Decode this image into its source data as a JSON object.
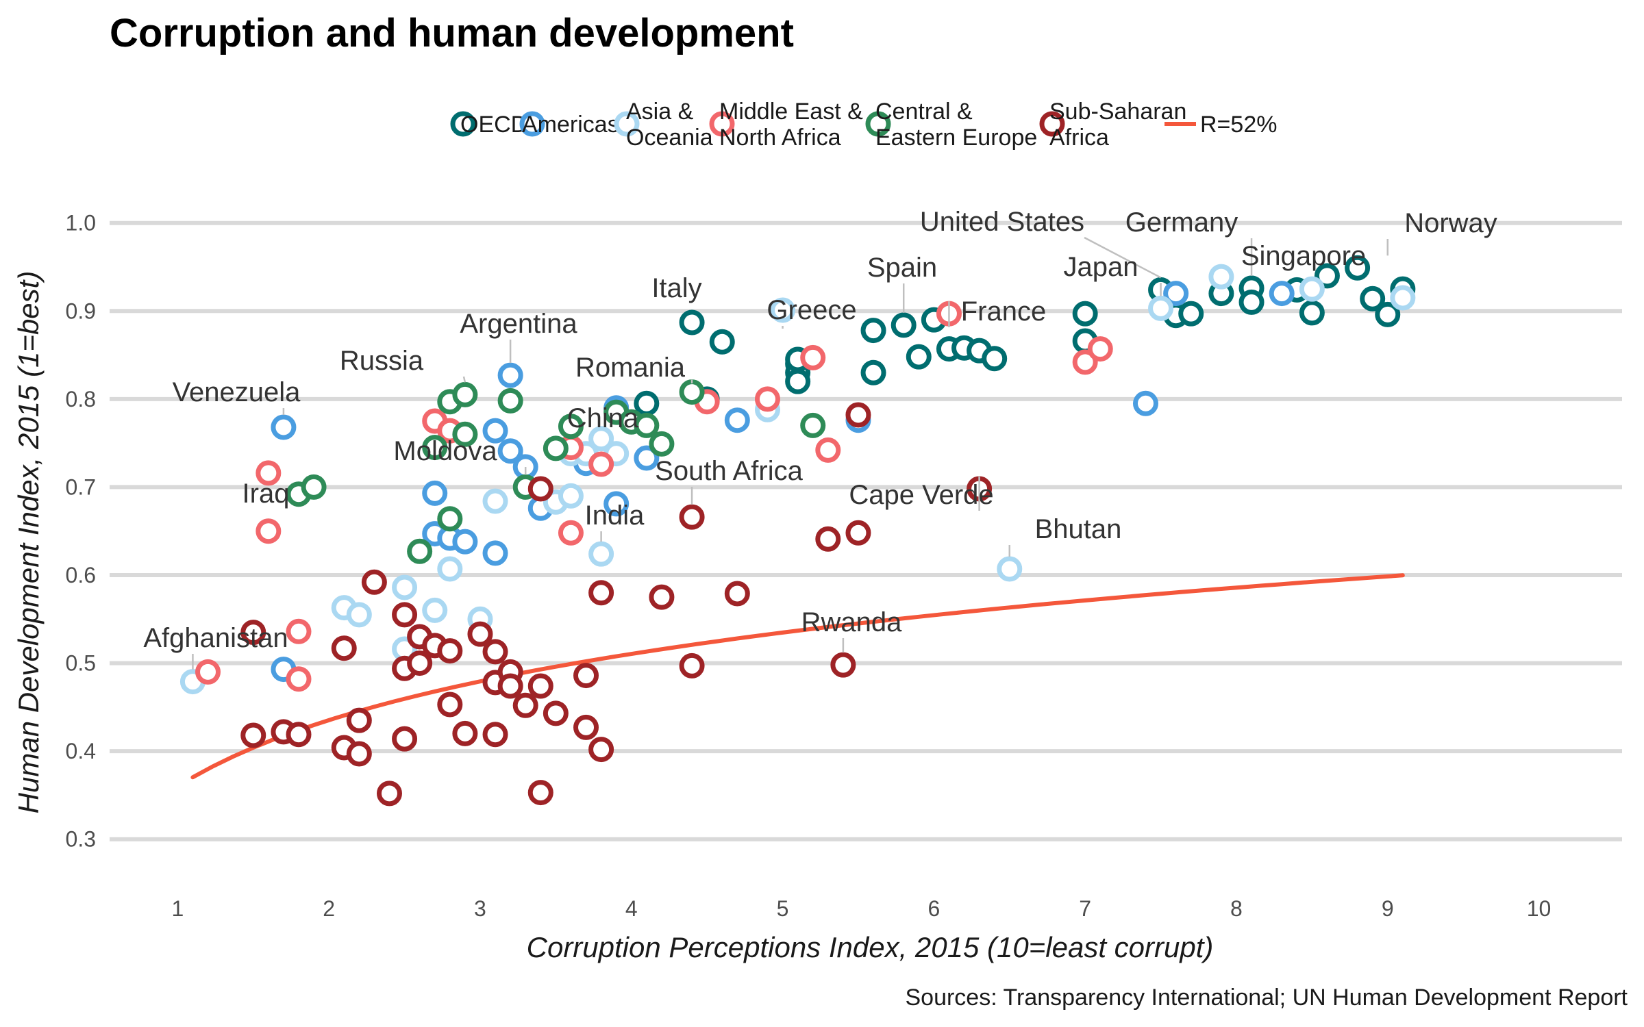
{
  "chart_data": {
    "type": "scatter",
    "title": "Corruption and human development",
    "xlabel": "Corruption Perceptions Index, 2015 (10=least corrupt)",
    "ylabel": "Human Development Index, 2015 (1=best)",
    "caption": "Sources: Transparency International; UN Human Development Report",
    "xlim": [
      0.55,
      10.55
    ],
    "ylim": [
      0.25,
      1.02
    ],
    "x_ticks": [
      1,
      2,
      3,
      4,
      5,
      6,
      7,
      8,
      9,
      10
    ],
    "y_ticks": [
      0.3,
      0.4,
      0.5,
      0.6,
      0.7,
      0.8,
      0.9,
      1.0
    ],
    "y_tick_labels": [
      "0.3",
      "0.4",
      "0.5",
      "0.6",
      "0.7",
      "0.8",
      "0.9",
      "1.0"
    ],
    "grid": "horizontal major only",
    "legend_position": "top",
    "legend": [
      {
        "label": "OECD",
        "color": "#006d6f"
      },
      {
        "label": "Americas",
        "color": "#4a9de0"
      },
      {
        "label": "Asia &\nOceania",
        "color": "#aad8f2"
      },
      {
        "label": "Middle East &\nNorth Africa",
        "color": "#f2676b"
      },
      {
        "label": "Central &\nEastern Europe",
        "color": "#2e8b57"
      },
      {
        "label": "Sub-Saharan\nAfrica",
        "color": "#9e2326"
      },
      {
        "label": "R=52%",
        "color": "#f4573b",
        "kind": "line"
      }
    ],
    "trend": {
      "label": "R=52%",
      "type": "log",
      "a": 0.36,
      "b": 0.25,
      "x_range": [
        1.1,
        9.1
      ],
      "color": "#f4573b"
    },
    "series": [
      {
        "name": "OECD",
        "color": "#006d6f",
        "points": [
          [
            4.4,
            0.887
          ],
          [
            4.6,
            0.865
          ],
          [
            4.5,
            0.8
          ],
          [
            4.1,
            0.795
          ],
          [
            5.1,
            0.84
          ],
          [
            5.1,
            0.83
          ],
          [
            5.1,
            0.82
          ],
          [
            5.1,
            0.845
          ],
          [
            5.6,
            0.878
          ],
          [
            5.6,
            0.83
          ],
          [
            5.8,
            0.884
          ],
          [
            5.9,
            0.848
          ],
          [
            6.0,
            0.89
          ],
          [
            6.1,
            0.857
          ],
          [
            6.2,
            0.858
          ],
          [
            6.3,
            0.855
          ],
          [
            6.4,
            0.846
          ],
          [
            7.0,
            0.897
          ],
          [
            7.0,
            0.866
          ],
          [
            7.5,
            0.924
          ],
          [
            7.6,
            0.895
          ],
          [
            7.7,
            0.897
          ],
          [
            7.9,
            0.92
          ],
          [
            8.1,
            0.926
          ],
          [
            8.1,
            0.91
          ],
          [
            8.4,
            0.924
          ],
          [
            8.5,
            0.898
          ],
          [
            8.6,
            0.94
          ],
          [
            8.8,
            0.949
          ],
          [
            8.9,
            0.914
          ],
          [
            9.0,
            0.896
          ],
          [
            9.1,
            0.925
          ]
        ]
      },
      {
        "name": "Americas",
        "color": "#4a9de0",
        "points": [
          [
            1.7,
            0.768
          ],
          [
            1.7,
            0.493
          ],
          [
            2.7,
            0.693
          ],
          [
            2.7,
            0.647
          ],
          [
            2.8,
            0.642
          ],
          [
            2.9,
            0.638
          ],
          [
            3.1,
            0.625
          ],
          [
            3.1,
            0.764
          ],
          [
            3.2,
            0.827
          ],
          [
            3.2,
            0.741
          ],
          [
            3.3,
            0.723
          ],
          [
            3.4,
            0.676
          ],
          [
            3.7,
            0.727
          ],
          [
            3.9,
            0.79
          ],
          [
            3.9,
            0.788
          ],
          [
            3.9,
            0.681
          ],
          [
            4.1,
            0.733
          ],
          [
            4.7,
            0.776
          ],
          [
            5.5,
            0.776
          ],
          [
            7.4,
            0.795
          ],
          [
            7.6,
            0.92
          ],
          [
            8.3,
            0.92
          ]
        ]
      },
      {
        "name": "Asia & Oceania",
        "color": "#aad8f2",
        "points": [
          [
            1.1,
            0.479
          ],
          [
            2.1,
            0.563
          ],
          [
            2.2,
            0.555
          ],
          [
            2.5,
            0.586
          ],
          [
            2.5,
            0.516
          ],
          [
            2.7,
            0.56
          ],
          [
            2.8,
            0.607
          ],
          [
            3.0,
            0.55
          ],
          [
            3.1,
            0.684
          ],
          [
            3.5,
            0.683
          ],
          [
            3.6,
            0.738
          ],
          [
            3.6,
            0.69
          ],
          [
            3.7,
            0.738
          ],
          [
            3.8,
            0.624
          ],
          [
            3.8,
            0.755
          ],
          [
            3.9,
            0.738
          ],
          [
            4.9,
            0.788
          ],
          [
            5.0,
            0.901
          ],
          [
            6.5,
            0.607
          ],
          [
            7.5,
            0.903
          ],
          [
            7.9,
            0.939
          ],
          [
            8.5,
            0.925
          ],
          [
            9.1,
            0.915
          ]
        ]
      },
      {
        "name": "Middle East & North Africa",
        "color": "#f2676b",
        "points": [
          [
            1.2,
            0.49
          ],
          [
            1.6,
            0.716
          ],
          [
            1.6,
            0.65
          ],
          [
            1.8,
            0.536
          ],
          [
            1.8,
            0.482
          ],
          [
            2.7,
            0.775
          ],
          [
            2.8,
            0.764
          ],
          [
            3.6,
            0.745
          ],
          [
            3.6,
            0.648
          ],
          [
            3.8,
            0.726
          ],
          [
            4.5,
            0.797
          ],
          [
            4.9,
            0.8
          ],
          [
            5.2,
            0.847
          ],
          [
            5.3,
            0.742
          ],
          [
            6.1,
            0.897
          ],
          [
            7.0,
            0.842
          ],
          [
            7.1,
            0.857
          ]
        ]
      },
      {
        "name": "Central & Eastern Europe",
        "color": "#2e8b57",
        "points": [
          [
            1.8,
            0.692
          ],
          [
            1.9,
            0.7
          ],
          [
            2.6,
            0.627
          ],
          [
            2.7,
            0.745
          ],
          [
            2.8,
            0.797
          ],
          [
            2.8,
            0.664
          ],
          [
            2.9,
            0.805
          ],
          [
            2.9,
            0.76
          ],
          [
            3.2,
            0.798
          ],
          [
            3.3,
            0.7
          ],
          [
            3.5,
            0.744
          ],
          [
            3.6,
            0.769
          ],
          [
            3.9,
            0.785
          ],
          [
            4.0,
            0.774
          ],
          [
            4.1,
            0.77
          ],
          [
            4.2,
            0.749
          ],
          [
            4.4,
            0.808
          ],
          [
            5.2,
            0.77
          ]
        ]
      },
      {
        "name": "Sub-Saharan Africa",
        "color": "#9e2326",
        "points": [
          [
            1.5,
            0.535
          ],
          [
            1.5,
            0.418
          ],
          [
            1.7,
            0.422
          ],
          [
            1.8,
            0.419
          ],
          [
            2.1,
            0.517
          ],
          [
            2.1,
            0.404
          ],
          [
            2.2,
            0.435
          ],
          [
            2.2,
            0.397
          ],
          [
            2.3,
            0.592
          ],
          [
            2.4,
            0.352
          ],
          [
            2.5,
            0.555
          ],
          [
            2.5,
            0.494
          ],
          [
            2.5,
            0.414
          ],
          [
            2.6,
            0.53
          ],
          [
            2.6,
            0.5
          ],
          [
            2.7,
            0.52
          ],
          [
            2.8,
            0.514
          ],
          [
            2.8,
            0.453
          ],
          [
            2.9,
            0.42
          ],
          [
            3.0,
            0.533
          ],
          [
            3.1,
            0.513
          ],
          [
            3.1,
            0.478
          ],
          [
            3.1,
            0.419
          ],
          [
            3.2,
            0.49
          ],
          [
            3.2,
            0.474
          ],
          [
            3.3,
            0.452
          ],
          [
            3.4,
            0.474
          ],
          [
            3.4,
            0.353
          ],
          [
            3.4,
            0.698
          ],
          [
            3.5,
            0.443
          ],
          [
            3.7,
            0.486
          ],
          [
            3.7,
            0.427
          ],
          [
            3.8,
            0.58
          ],
          [
            3.8,
            0.402
          ],
          [
            4.2,
            0.575
          ],
          [
            4.4,
            0.666
          ],
          [
            4.4,
            0.497
          ],
          [
            4.7,
            0.579
          ],
          [
            5.3,
            0.641
          ],
          [
            5.4,
            0.498
          ],
          [
            5.5,
            0.648
          ],
          [
            5.5,
            0.782
          ],
          [
            6.3,
            0.698
          ]
        ]
      }
    ],
    "annotations": [
      {
        "text": "Afghanistan",
        "x": 1.1,
        "y": 0.479
      },
      {
        "text": "Iraq",
        "x": 1.6,
        "y": 0.65
      },
      {
        "text": "Venezuela",
        "x": 1.7,
        "y": 0.768
      },
      {
        "text": "Russia",
        "x": 2.9,
        "y": 0.805
      },
      {
        "text": "Argentina",
        "x": 3.2,
        "y": 0.827
      },
      {
        "text": "Moldova",
        "x": 3.3,
        "y": 0.7
      },
      {
        "text": "China",
        "x": 3.7,
        "y": 0.738
      },
      {
        "text": "India",
        "x": 3.8,
        "y": 0.624
      },
      {
        "text": "Romania",
        "x": 4.4,
        "y": 0.808
      },
      {
        "text": "Italy",
        "x": 4.4,
        "y": 0.887
      },
      {
        "text": "South Africa",
        "x": 4.4,
        "y": 0.666
      },
      {
        "text": "Greece",
        "x": 5.0,
        "y": 0.866
      },
      {
        "text": "Rwanda",
        "x": 5.4,
        "y": 0.498
      },
      {
        "text": "Spain",
        "x": 5.8,
        "y": 0.884
      },
      {
        "text": "Cape Verde",
        "x": 6.3,
        "y": 0.698
      },
      {
        "text": "France",
        "x": 6.1,
        "y": 0.897
      },
      {
        "text": "Bhutan",
        "x": 6.5,
        "y": 0.607
      },
      {
        "text": "United States",
        "x": 7.5,
        "y": 0.924
      },
      {
        "text": "Japan",
        "x": 7.5,
        "y": 0.903
      },
      {
        "text": "Germany",
        "x": 8.1,
        "y": 0.926
      },
      {
        "text": "Singapore",
        "x": 8.5,
        "y": 0.925
      },
      {
        "text": "Norway",
        "x": 9.0,
        "y": 0.949
      }
    ]
  }
}
